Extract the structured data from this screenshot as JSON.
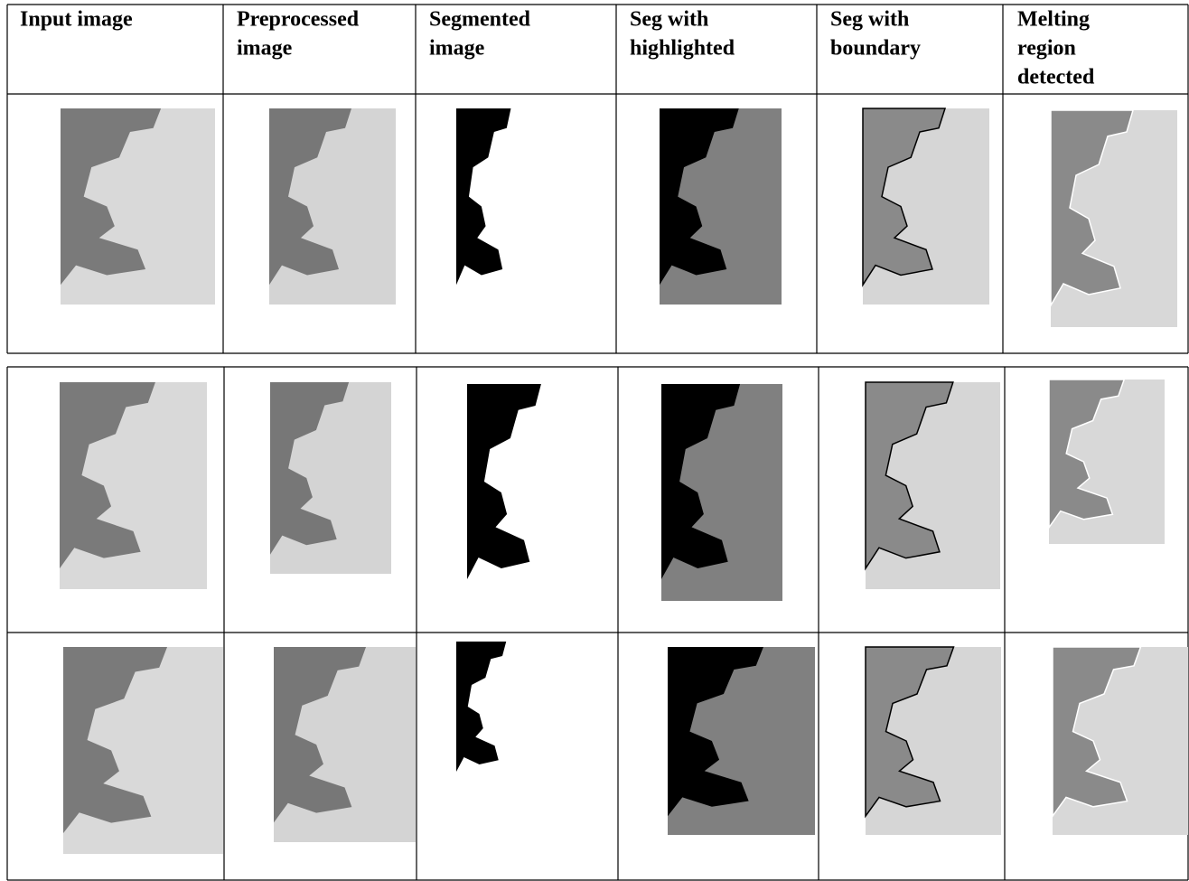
{
  "table": {
    "headers": [
      [
        "Input image"
      ],
      [
        "Preprocessed",
        "image"
      ],
      [
        "Segmented",
        "image"
      ],
      [
        "Seg with",
        "highlighted"
      ],
      [
        "Seg with",
        "boundary"
      ],
      [
        "Melting",
        "region",
        "detected"
      ]
    ]
  }
}
